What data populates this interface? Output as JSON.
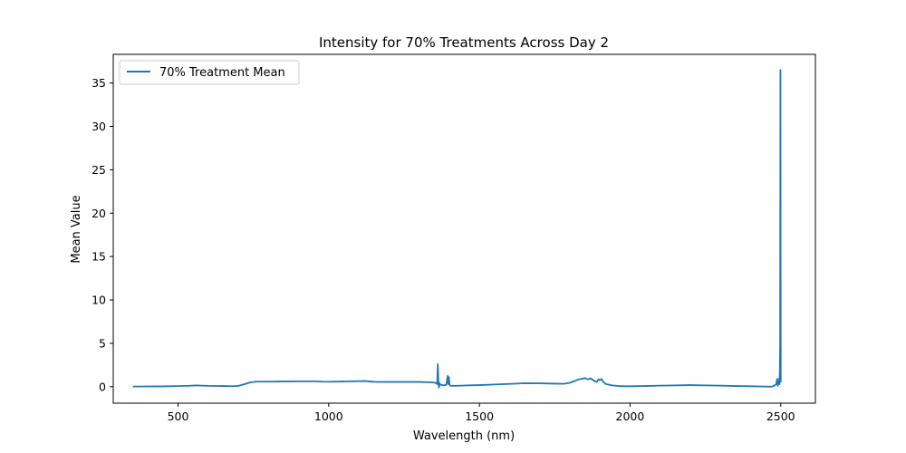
{
  "chart_data": {
    "type": "line",
    "title": "Intensity for 70% Treatments Across Day 2",
    "xlabel": "Wavelength (nm)",
    "ylabel": "Mean Value",
    "xlim": [
      285,
      2615
    ],
    "ylim": [
      -1.9,
      38.3
    ],
    "xticks": [
      500,
      1000,
      1500,
      2000,
      2500
    ],
    "yticks": [
      0,
      5,
      10,
      15,
      20,
      25,
      30,
      35
    ],
    "grid": false,
    "legend_position": "top-left",
    "series": [
      {
        "name": "70% Treatment Mean",
        "color": "#1f77b4",
        "x": [
          350,
          400,
          450,
          500,
          530,
          560,
          600,
          650,
          680,
          700,
          720,
          740,
          760,
          800,
          850,
          900,
          950,
          980,
          1000,
          1050,
          1100,
          1120,
          1150,
          1200,
          1250,
          1300,
          1340,
          1355,
          1360,
          1362,
          1364,
          1366,
          1368,
          1370,
          1380,
          1390,
          1395,
          1397,
          1399,
          1401,
          1403,
          1410,
          1420,
          1440,
          1460,
          1500,
          1550,
          1600,
          1650,
          1700,
          1750,
          1780,
          1800,
          1820,
          1830,
          1840,
          1850,
          1860,
          1870,
          1880,
          1885,
          1890,
          1895,
          1900,
          1905,
          1910,
          1920,
          1940,
          1960,
          1980,
          2000,
          2050,
          2100,
          2150,
          2200,
          2250,
          2300,
          2350,
          2400,
          2450,
          2470,
          2480,
          2485,
          2488,
          2490,
          2492,
          2494,
          2495,
          2496,
          2497,
          2498,
          2499,
          2500
        ],
        "y": [
          0.02,
          0.03,
          0.04,
          0.07,
          0.1,
          0.15,
          0.1,
          0.08,
          0.05,
          0.1,
          0.28,
          0.5,
          0.58,
          0.58,
          0.6,
          0.62,
          0.62,
          0.58,
          0.57,
          0.6,
          0.63,
          0.65,
          0.56,
          0.55,
          0.55,
          0.55,
          0.5,
          0.45,
          0.3,
          2.6,
          0.5,
          -0.1,
          0.4,
          0.25,
          0.15,
          0.2,
          1.25,
          0.3,
          1.1,
          0.2,
          0.12,
          0.1,
          0.1,
          0.12,
          0.15,
          0.18,
          0.25,
          0.32,
          0.4,
          0.38,
          0.35,
          0.33,
          0.45,
          0.7,
          0.85,
          0.9,
          1.0,
          0.85,
          0.95,
          0.7,
          0.6,
          0.55,
          0.85,
          0.75,
          0.9,
          0.6,
          0.3,
          0.15,
          0.08,
          0.05,
          0.05,
          0.08,
          0.12,
          0.15,
          0.18,
          0.15,
          0.12,
          0.08,
          0.05,
          0.02,
          0.0,
          0.15,
          0.3,
          0.9,
          0.1,
          0.6,
          0.3,
          1.0,
          0.3,
          1.8,
          5.0,
          36.5,
          0.5
        ]
      }
    ]
  }
}
